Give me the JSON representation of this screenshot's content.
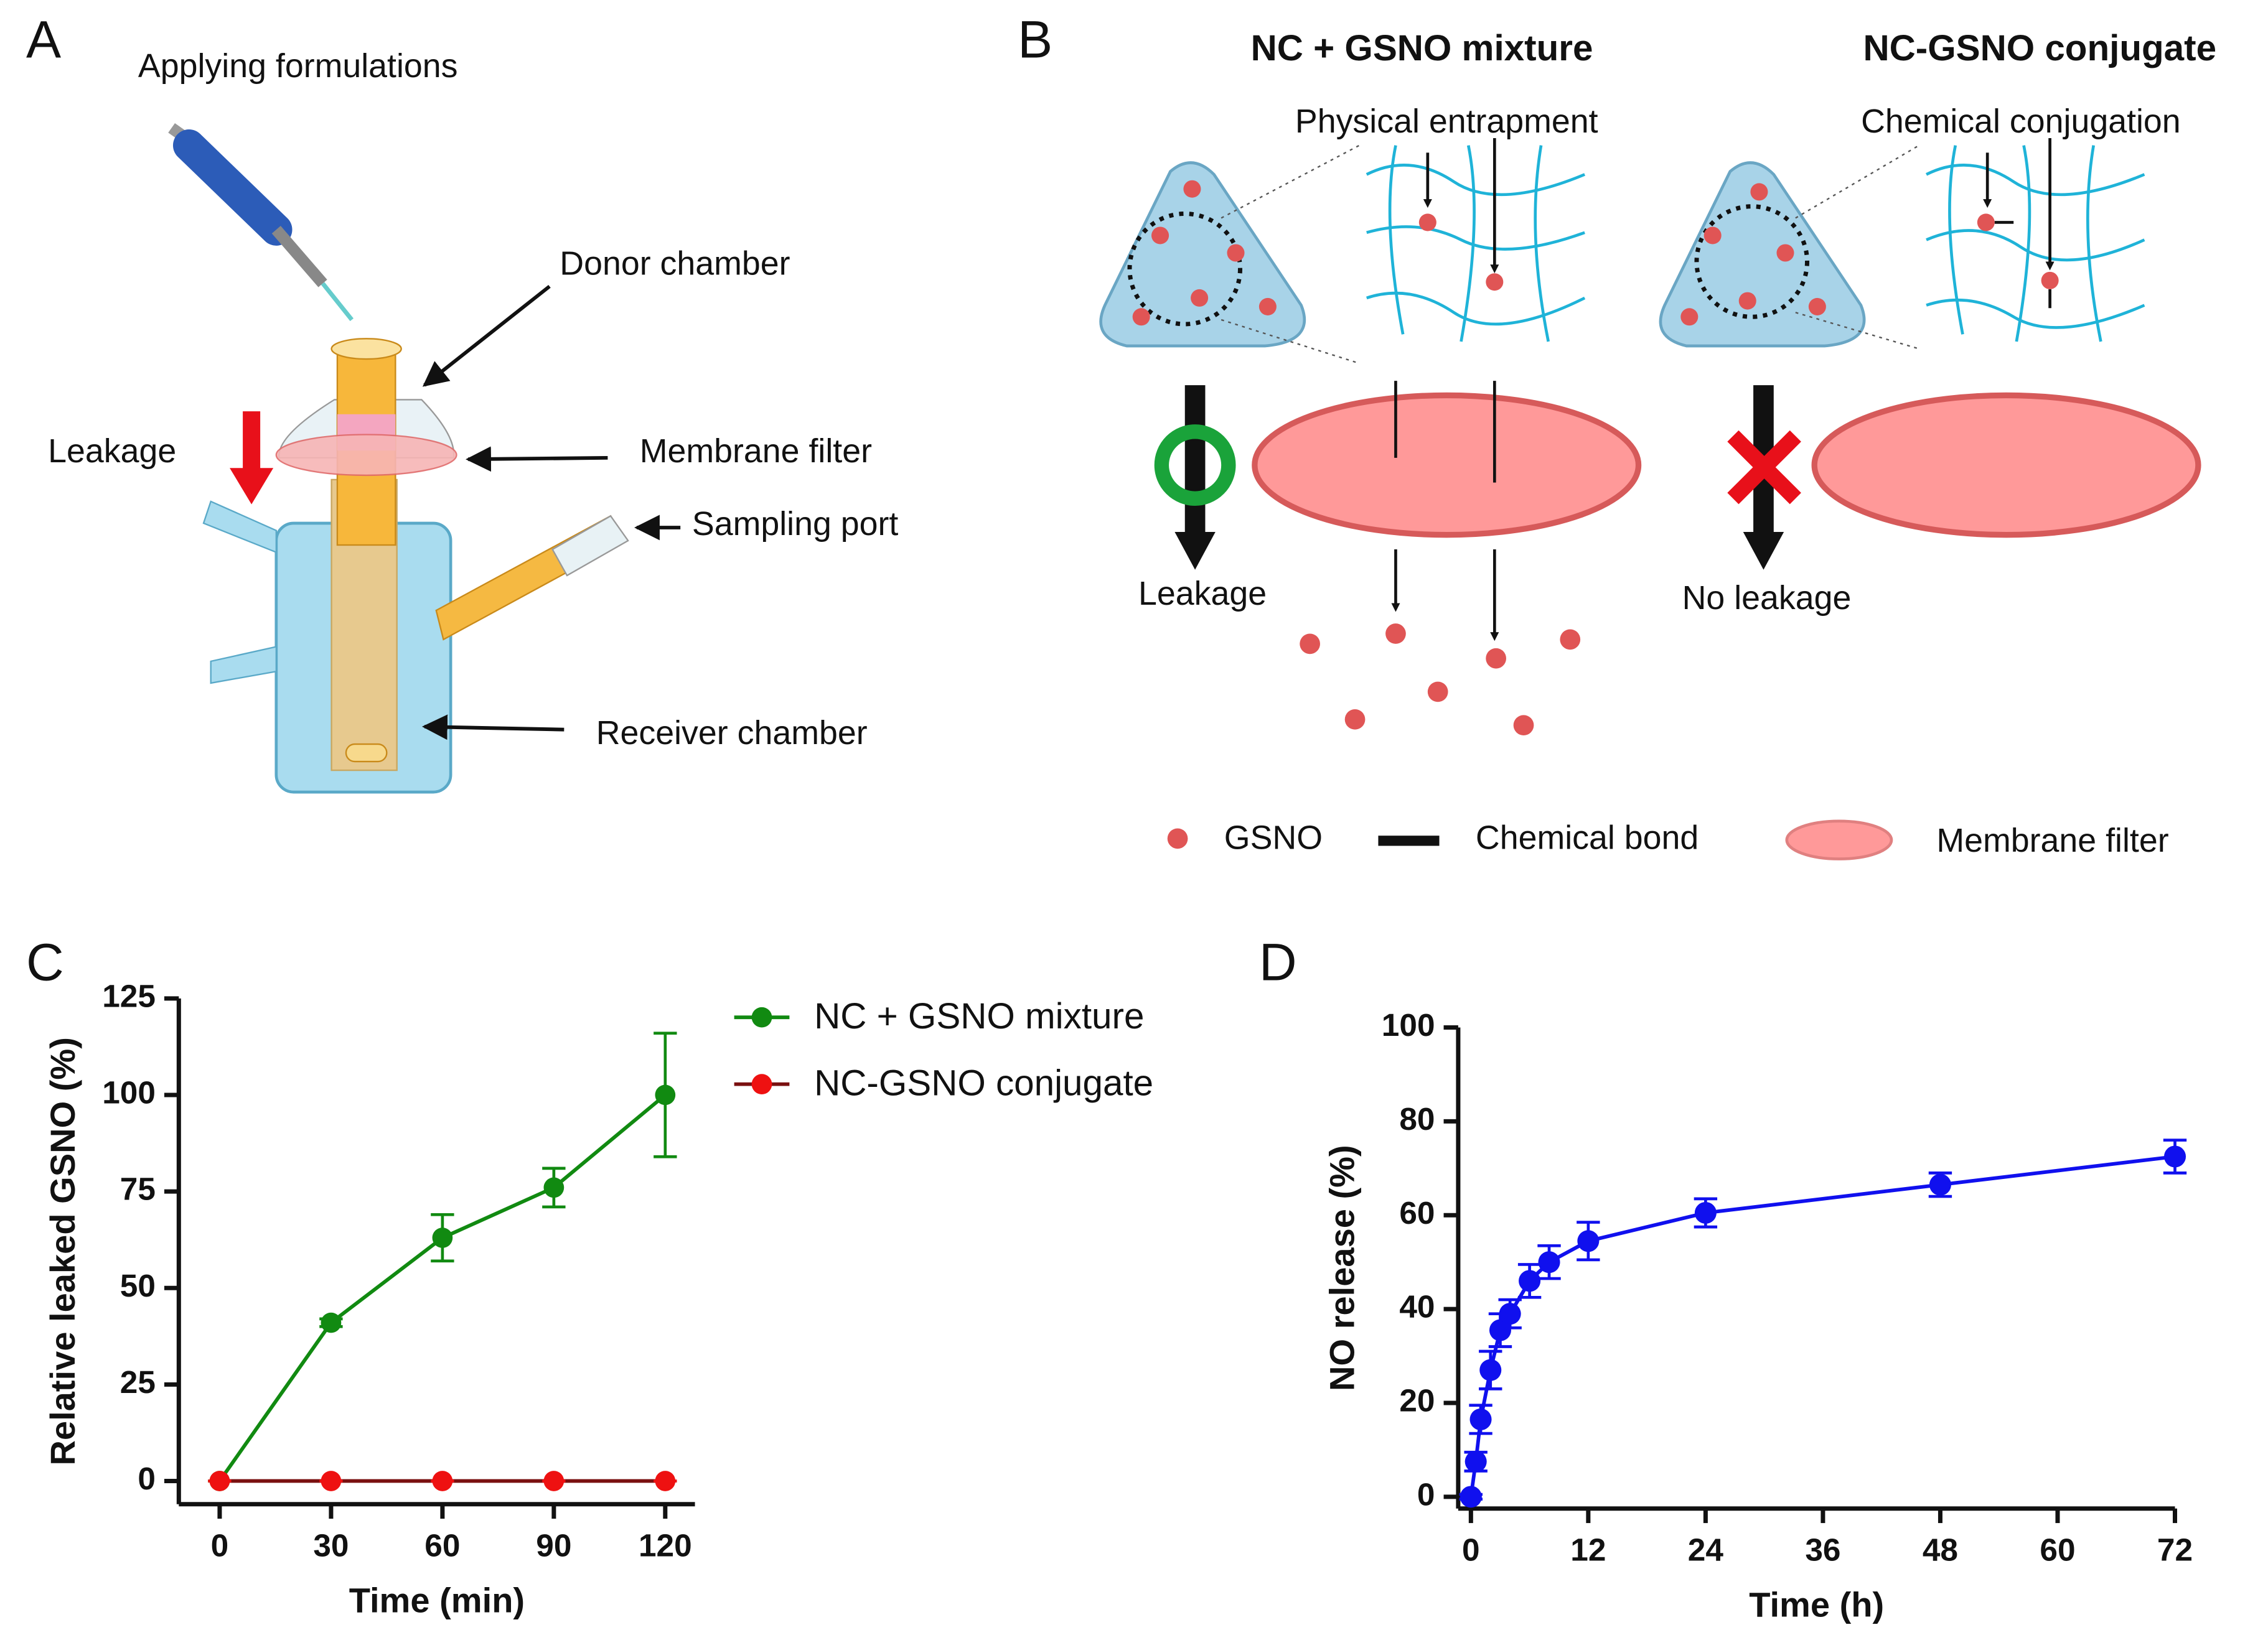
{
  "panel_a": {
    "label": "A",
    "applying": "Applying formulations",
    "donor": "Donor chamber",
    "membrane": "Membrane filter",
    "leakage": "Leakage",
    "sampling": "Sampling port",
    "receiver": "Receiver chamber"
  },
  "panel_b": {
    "label": "B",
    "mixture_title": "NC + GSNO mixture",
    "conjugate_title": "NC-GSNO conjugate",
    "physical": "Physical entrapment",
    "chemical": "Chemical conjugation",
    "leakage": "Leakage",
    "no_leakage": "No leakage",
    "legend": [
      "GSNO",
      "Chemical bond",
      "Membrane filter"
    ]
  },
  "chart_data": [
    {
      "type": "line",
      "panel": "C",
      "xlabel": "Time (min)",
      "ylabel": "Relative leaked GSNO (%)",
      "x": [
        0,
        30,
        60,
        90,
        120
      ],
      "xlim": [
        -11,
        128
      ],
      "ylim": [
        -6,
        125
      ],
      "xticks": [
        0,
        30,
        60,
        90,
        120
      ],
      "yticks": [
        0,
        25,
        50,
        75,
        100,
        125
      ],
      "legend": "right",
      "series": [
        {
          "name": "NC + GSNO mixture",
          "color": "#118a11",
          "line_color": "#118a11",
          "values": [
            0,
            41,
            63,
            76,
            100
          ],
          "errors": [
            0,
            1,
            6,
            5,
            16
          ]
        },
        {
          "name": "NC-GSNO conjugate",
          "color": "#ee1111",
          "line_color": "#7a1010",
          "values": [
            0,
            0,
            0,
            0,
            0
          ],
          "errors": [
            0,
            0,
            0,
            0,
            0
          ]
        }
      ]
    },
    {
      "type": "line",
      "panel": "D",
      "xlabel": "Time (h)",
      "ylabel": "NO release (%)",
      "x": [
        0,
        0.5,
        1,
        2,
        3,
        4,
        6,
        8,
        12,
        24,
        48,
        72
      ],
      "xlim": [
        -1.3,
        72
      ],
      "ylim": [
        -2.5,
        100
      ],
      "xticks": [
        0,
        12,
        24,
        36,
        48,
        60,
        72
      ],
      "yticks": [
        0,
        20,
        40,
        60,
        80,
        100
      ],
      "series": [
        {
          "color": "#1010ee",
          "line_color": "#1010ee",
          "values": [
            0,
            7.5,
            16.5,
            27,
            35.5,
            39,
            46,
            50,
            54.5,
            60.5,
            66.5,
            72.5
          ],
          "errors": [
            0.5,
            2,
            3,
            4,
            3.5,
            3,
            3.5,
            3.5,
            4,
            3,
            2.5,
            3.5
          ]
        }
      ]
    }
  ]
}
